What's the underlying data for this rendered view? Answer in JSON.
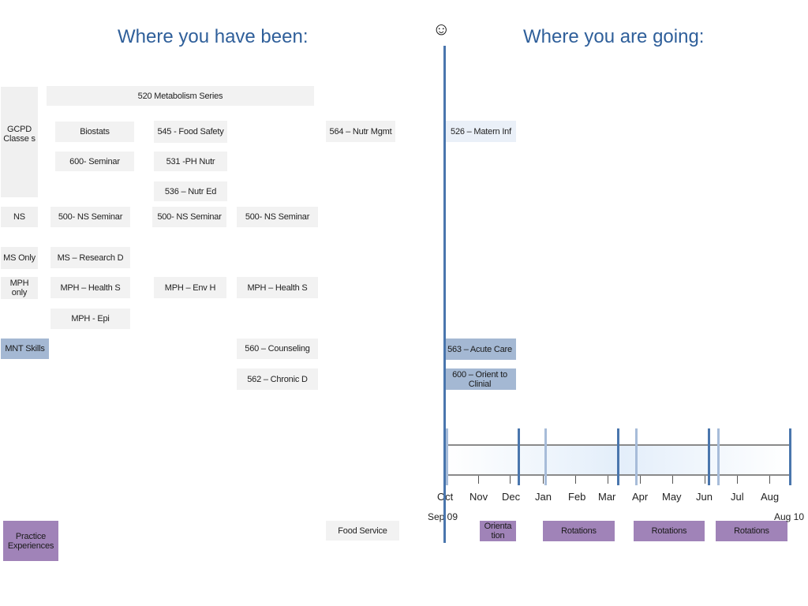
{
  "headings": {
    "past": "Where you have been:",
    "future": "Where you are going:",
    "smiley": "☺"
  },
  "side_labels": {
    "gcpd": "GCPD Classe s",
    "ns": "NS",
    "ms_only": "MS Only",
    "mph_only": "MPH only",
    "mnt_skills": "MNT Skills",
    "practice": "Practice Experiences"
  },
  "courses": {
    "metabolism": "520 Metabolism Series",
    "biostats": "Biostats",
    "food_safety": "545 - Food Safety",
    "nutr_mgmt": "564 – Nutr Mgmt",
    "matern_inf": "526 – Matern Inf",
    "seminar_600": "600- Seminar",
    "ph_nutr": "531 -PH Nutr",
    "nutr_ed": "536 – Nutr Ed",
    "ns_seminar_1": "500- NS Seminar",
    "ns_seminar_2": "500- NS Seminar",
    "ns_seminar_3": "500- NS Seminar",
    "ms_research": "MS – Research D",
    "mph_health_1": "MPH – Health S",
    "mph_env": "MPH – Env H",
    "mph_health_2": "MPH – Health S",
    "mph_epi": "MPH - Epi",
    "counseling": "560 – Counseling",
    "acute_care": "563 – Acute Care",
    "chronic": "562 – Chronic D",
    "orient_clinical": "600 – Orient to Clinial",
    "food_service": "Food Service",
    "orientation": "Orienta tion",
    "rotations_1": "Rotations",
    "rotations_2": "Rotations",
    "rotations_3": "Rotations"
  },
  "timeline": {
    "months": [
      "Oct",
      "Nov",
      "Dec",
      "Jan",
      "Feb",
      "Mar",
      "Apr",
      "May",
      "Jun",
      "Jul",
      "Aug"
    ],
    "start_label": "Sep 09",
    "end_label": "Aug 10"
  },
  "colors": {
    "heading": "#2f5f9a",
    "timeline_marker": "#4a76ad",
    "mnt_box": "#a4b8d3",
    "practice_box": "#a083b8",
    "course_box": "#f2f2f2"
  }
}
